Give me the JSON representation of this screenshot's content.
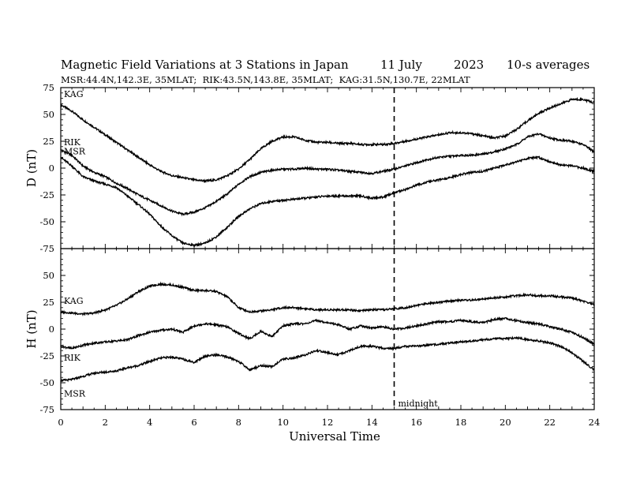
{
  "header": {
    "title": "Magnetic Field Variations at 3 Stations in Japan",
    "date": "11 July",
    "year": "2023",
    "averaging": "10-s averages",
    "stations_line": "MSR:44.4N,142.3E, 35MLAT;  RIK:43.5N,143.8E, 35MLAT;  KAG:31.5N,130.7E, 22MLAT"
  },
  "chart_data": [
    {
      "type": "line",
      "panel": "D",
      "ylabel": "D (nT)",
      "ylim": [
        -75,
        75
      ],
      "yticks": [
        75,
        50,
        25,
        0,
        -25,
        -50,
        -75
      ],
      "xlim": [
        0,
        24
      ],
      "series": [
        {
          "name": "KAG",
          "x": [
            0,
            0.5,
            1,
            1.5,
            2,
            2.5,
            3,
            3.5,
            4,
            4.5,
            5,
            5.5,
            6,
            6.5,
            7,
            7.5,
            8,
            8.5,
            9,
            9.5,
            10,
            10.5,
            11,
            11.5,
            12,
            12.5,
            13,
            13.5,
            14,
            14.5,
            15,
            15.5,
            16,
            16.5,
            17,
            17.5,
            18,
            18.5,
            19,
            19.5,
            20,
            20.5,
            21,
            21.5,
            22,
            22.5,
            23,
            23.5,
            24
          ],
          "y": [
            59,
            53,
            45,
            38,
            31,
            24,
            17,
            10,
            3,
            -3,
            -7,
            -9,
            -11,
            -12,
            -11,
            -7,
            -1,
            8,
            18,
            25,
            29,
            29,
            26,
            24,
            24,
            23,
            23,
            22,
            22,
            22,
            23,
            25,
            27,
            29,
            31,
            33,
            33,
            32,
            30,
            28,
            30,
            36,
            44,
            51,
            56,
            60,
            64,
            64,
            61
          ]
        },
        {
          "name": "RIK",
          "x": [
            0,
            0.5,
            1,
            1.5,
            2,
            2.5,
            3,
            3.5,
            4,
            4.5,
            5,
            5.5,
            6,
            6.5,
            7,
            7.5,
            8,
            8.5,
            9,
            9.5,
            10,
            10.5,
            11,
            11.5,
            12,
            12.5,
            13,
            13.5,
            14,
            14.5,
            15,
            15.5,
            16,
            16.5,
            17,
            17.5,
            18,
            18.5,
            19,
            19.5,
            20,
            20.5,
            21,
            21.5,
            22,
            22.5,
            23,
            23.5,
            24
          ],
          "y": [
            17,
            12,
            2,
            -4,
            -8,
            -14,
            -19,
            -25,
            -30,
            -35,
            -40,
            -43,
            -41,
            -37,
            -31,
            -24,
            -15,
            -8,
            -4,
            -2,
            -1,
            -1,
            0,
            -1,
            -1,
            -2,
            -3,
            -4,
            -5,
            -3,
            -1,
            2,
            5,
            8,
            10,
            11,
            12,
            12,
            13,
            15,
            18,
            22,
            29,
            32,
            28,
            26,
            25,
            22,
            15
          ]
        },
        {
          "name": "MSR",
          "x": [
            0,
            0.5,
            1,
            1.5,
            2,
            2.5,
            3,
            3.5,
            4,
            4.5,
            5,
            5.5,
            6,
            6.5,
            7,
            7.5,
            8,
            8.5,
            9,
            9.5,
            10,
            10.5,
            11,
            11.5,
            12,
            12.5,
            13,
            13.5,
            14,
            14.5,
            15,
            15.5,
            16,
            16.5,
            17,
            17.5,
            18,
            18.5,
            19,
            19.5,
            20,
            20.5,
            21,
            21.5,
            22,
            22.5,
            23,
            23.5,
            24
          ],
          "y": [
            10,
            2,
            -8,
            -12,
            -15,
            -18,
            -26,
            -34,
            -43,
            -54,
            -63,
            -70,
            -72,
            -70,
            -64,
            -55,
            -45,
            -38,
            -33,
            -31,
            -30,
            -29,
            -28,
            -27,
            -26,
            -26,
            -26,
            -26,
            -28,
            -27,
            -23,
            -20,
            -16,
            -13,
            -11,
            -9,
            -6,
            -4,
            -3,
            0,
            3,
            6,
            9,
            10,
            6,
            3,
            2,
            0,
            -3
          ]
        }
      ]
    },
    {
      "type": "line",
      "panel": "H",
      "ylabel": "H (nT)",
      "xlabel": "Universal Time",
      "ylim": [
        -75,
        75
      ],
      "yticks": [
        50,
        25,
        0,
        -25,
        -50,
        -75
      ],
      "xlim": [
        0,
        24
      ],
      "xticks": [
        0,
        2,
        4,
        6,
        8,
        10,
        12,
        14,
        16,
        18,
        20,
        22,
        24
      ],
      "series": [
        {
          "name": "KAG",
          "x": [
            0,
            0.5,
            1,
            1.5,
            2,
            2.5,
            3,
            3.5,
            4,
            4.5,
            5,
            5.5,
            6,
            6.5,
            7,
            7.5,
            8,
            8.5,
            9,
            9.5,
            10,
            10.5,
            11,
            11.5,
            12,
            12.5,
            13,
            13.5,
            14,
            14.5,
            15,
            15.5,
            16,
            16.5,
            17,
            17.5,
            18,
            18.5,
            19,
            19.5,
            20,
            20.5,
            21,
            21.5,
            22,
            22.5,
            23,
            23.5,
            24
          ],
          "y": [
            16,
            15,
            14,
            15,
            18,
            22,
            28,
            35,
            40,
            42,
            41,
            39,
            36,
            36,
            35,
            30,
            20,
            16,
            17,
            18,
            20,
            20,
            19,
            18,
            18,
            18,
            18,
            17,
            18,
            18,
            19,
            20,
            22,
            24,
            25,
            26,
            27,
            27,
            28,
            29,
            30,
            31,
            32,
            31,
            31,
            30,
            29,
            26,
            23
          ]
        },
        {
          "name": "RIK",
          "x": [
            0,
            0.5,
            1,
            1.5,
            2,
            2.5,
            3,
            3.5,
            4,
            4.5,
            5,
            5.5,
            6,
            6.5,
            7,
            7.5,
            8,
            8.5,
            9,
            9.5,
            10,
            10.5,
            11,
            11.5,
            12,
            12.5,
            13,
            13.5,
            14,
            14.5,
            15,
            15.5,
            16,
            16.5,
            17,
            17.5,
            18,
            18.5,
            19,
            19.5,
            20,
            20.5,
            21,
            21.5,
            22,
            22.5,
            23,
            23.5,
            24
          ],
          "y": [
            -16,
            -18,
            -15,
            -13,
            -12,
            -11,
            -10,
            -6,
            -3,
            -1,
            0,
            -3,
            3,
            5,
            4,
            2,
            -4,
            -9,
            -2,
            -7,
            3,
            5,
            5,
            8,
            6,
            4,
            0,
            3,
            1,
            2,
            0,
            1,
            3,
            5,
            7,
            7,
            8,
            7,
            6,
            9,
            10,
            8,
            6,
            5,
            2,
            0,
            -3,
            -8,
            -14
          ]
        },
        {
          "name": "MSR",
          "x": [
            0,
            0.5,
            1,
            1.5,
            2,
            2.5,
            3,
            3.5,
            4,
            4.5,
            5,
            5.5,
            6,
            6.5,
            7,
            7.5,
            8,
            8.5,
            9,
            9.5,
            10,
            10.5,
            11,
            11.5,
            12,
            12.5,
            13,
            13.5,
            14,
            14.5,
            15,
            15.5,
            16,
            16.5,
            17,
            17.5,
            18,
            18.5,
            19,
            19.5,
            20,
            20.5,
            21,
            21.5,
            22,
            22.5,
            23,
            23.5,
            24
          ],
          "y": [
            -48,
            -47,
            -44,
            -41,
            -40,
            -39,
            -36,
            -34,
            -30,
            -27,
            -26,
            -28,
            -31,
            -25,
            -24,
            -26,
            -30,
            -38,
            -34,
            -35,
            -28,
            -27,
            -24,
            -20,
            -22,
            -24,
            -20,
            -16,
            -16,
            -18,
            -18,
            -16,
            -16,
            -15,
            -14,
            -13,
            -12,
            -11,
            -10,
            -9,
            -9,
            -8,
            -10,
            -11,
            -13,
            -16,
            -22,
            -30,
            -38
          ]
        }
      ]
    }
  ],
  "midnight_marker": {
    "x": 15,
    "label": "midnight"
  }
}
